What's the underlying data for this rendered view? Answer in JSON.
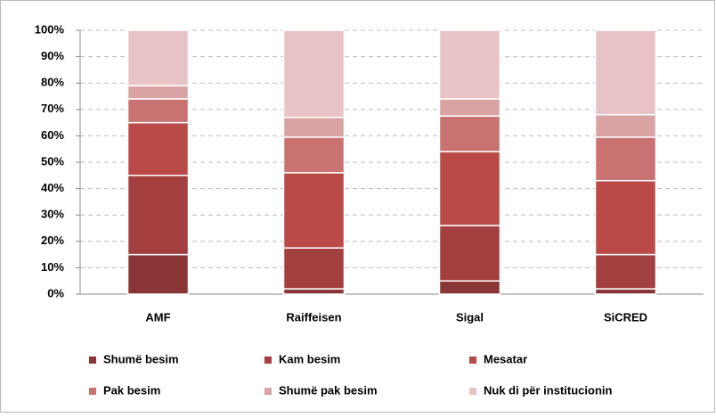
{
  "chart_data": {
    "type": "stacked_bar",
    "categories": [
      "AMF",
      "Raiffeisen",
      "Sigal",
      "SiCRED"
    ],
    "series": [
      {
        "name": "Shumë besim",
        "color": "#8b3636",
        "values": [
          15,
          2,
          5,
          2
        ]
      },
      {
        "name": "Kam besim",
        "color": "#a33f3f",
        "values": [
          30,
          15.5,
          21,
          13
        ]
      },
      {
        "name": "Mesatar",
        "color": "#b94a48",
        "values": [
          20,
          28.5,
          28,
          28
        ]
      },
      {
        "name": "Pak besim",
        "color": "#c87272",
        "values": [
          9,
          13.5,
          13.5,
          16.5
        ]
      },
      {
        "name": "Shumë pak besim",
        "color": "#d9a3a3",
        "values": [
          5,
          7.5,
          6.5,
          8.5
        ]
      },
      {
        "name": "Nuk di për institucionin",
        "color": "#e8c3c6",
        "values": [
          21,
          33,
          26,
          32
        ]
      }
    ],
    "ylim": [
      0,
      100
    ],
    "yticks": [
      {
        "value": 0,
        "label": "0%"
      },
      {
        "value": 10,
        "label": "10%"
      },
      {
        "value": 20,
        "label": "20%"
      },
      {
        "value": 30,
        "label": "30%"
      },
      {
        "value": 40,
        "label": "40%"
      },
      {
        "value": 50,
        "label": "50%"
      },
      {
        "value": 60,
        "label": "60%"
      },
      {
        "value": 70,
        "label": "70%"
      },
      {
        "value": 80,
        "label": "80%"
      },
      {
        "value": 90,
        "label": "90%"
      },
      {
        "value": 100,
        "label": "100%"
      }
    ],
    "grid": true
  }
}
